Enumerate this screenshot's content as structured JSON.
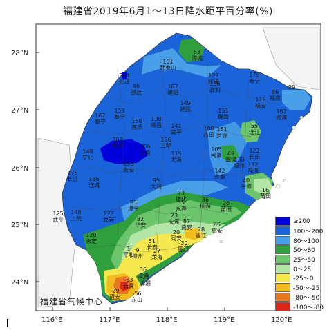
{
  "title": "福建省2019年6月1～13日降水距平百分率(%)",
  "watermark": "福建省气候中心",
  "axes": {
    "lat_ticks": [
      "28°N",
      "27°N",
      "26°N",
      "25°N",
      "24°N"
    ],
    "lon_ticks": [
      "116°E",
      "117°E",
      "118°E",
      "119°E",
      "120°E"
    ]
  },
  "legend": [
    {
      "label": "≥200",
      "color": "#0000dd"
    },
    {
      "label": "100～200",
      "color": "#1a63d8"
    },
    {
      "label": "80～100",
      "color": "#4aa0e8"
    },
    {
      "label": "50～80",
      "color": "#2f9e3c"
    },
    {
      "label": "25～50",
      "color": "#6cc46c"
    },
    {
      "label": "0～25",
      "color": "#b3e6a6"
    },
    {
      "label": "-25～0",
      "color": "#f5e84e"
    },
    {
      "label": "-50～-25",
      "color": "#f0bd1d"
    },
    {
      "label": "-80～-50",
      "color": "#e8761f"
    },
    {
      "label": "-100～-80",
      "color": "#dd2418"
    }
  ],
  "stations": [
    {
      "value": "53",
      "name": "浦城"
    },
    {
      "value": "101",
      "name": "武夷山"
    },
    {
      "value": "127",
      "name": "松溪"
    },
    {
      "value": "136",
      "name": "政和"
    },
    {
      "value": "179",
      "name": "寿宁"
    },
    {
      "value": "86",
      "name": "福鼎"
    },
    {
      "value": "99",
      "name": ""
    },
    {
      "value": "204",
      "name": "光泽"
    },
    {
      "value": "90",
      "name": "邵武"
    },
    {
      "value": "167",
      "name": "建阳"
    },
    {
      "value": "149",
      "name": "建瓯"
    },
    {
      "value": "151",
      "name": "屏南"
    },
    {
      "value": "119",
      "name": "福安"
    },
    {
      "value": "162",
      "name": "霞浦"
    },
    {
      "value": "162",
      "name": "泰宁"
    },
    {
      "value": "153",
      "name": "泰宁"
    },
    {
      "value": "156",
      "name": "将乐"
    },
    {
      "value": "138",
      "name": "顺昌"
    },
    {
      "value": "141",
      "name": "南平"
    },
    {
      "value": "108",
      "name": "古田"
    },
    {
      "value": "151",
      "name": "罗源"
    },
    {
      "value": "55",
      "name": "连江"
    },
    {
      "value": "148",
      "name": "宁化"
    },
    {
      "value": "207",
      "name": "明溪"
    },
    {
      "value": "206",
      "name": "沙县"
    },
    {
      "value": "136",
      "name": "三明"
    },
    {
      "value": "115",
      "name": "尤溪"
    },
    {
      "value": "105",
      "name": "闽清"
    },
    {
      "value": "49",
      "name": "闽侯"
    },
    {
      "value": "130",
      "name": "福州"
    },
    {
      "value": "122",
      "name": "长乐"
    },
    {
      "value": "112",
      "name": "福清"
    },
    {
      "value": "193",
      "name": "永安"
    },
    {
      "value": "175",
      "name": "长汀"
    },
    {
      "value": "116",
      "name": "连城"
    },
    {
      "value": "95",
      "name": "大田"
    },
    {
      "value": "142",
      "name": "永泰"
    },
    {
      "value": "40",
      "name": "平潭"
    },
    {
      "value": "16",
      "name": "莆田"
    },
    {
      "value": "73",
      "name": "德化"
    },
    {
      "value": "35",
      "name": "永春"
    },
    {
      "value": "36",
      "name": "仙游"
    },
    {
      "value": "26",
      "name": "莆田"
    },
    {
      "value": "125",
      "name": "武平"
    },
    {
      "value": "148",
      "name": "上杭"
    },
    {
      "value": "85",
      "name": "漳平"
    },
    {
      "value": "172",
      "name": "龙岩"
    },
    {
      "value": "82",
      "name": "华安"
    },
    {
      "value": "23",
      "name": "安溪"
    },
    {
      "value": "87",
      "name": "南安"
    },
    {
      "value": "28",
      "name": "晋江"
    },
    {
      "value": "65",
      "name": "惠安"
    },
    {
      "value": "120",
      "name": "永定"
    },
    {
      "value": "20",
      "name": "同安"
    },
    {
      "value": "51",
      "name": "长泰"
    },
    {
      "value": "1",
      "name": "平和"
    },
    {
      "value": "9",
      "name": "漳州"
    },
    {
      "value": "27",
      "name": "龙海"
    },
    {
      "value": "-30",
      "name": "厦门"
    },
    {
      "value": "36",
      "name": "漳浦"
    },
    {
      "value": "-53",
      "name": "云霄"
    },
    {
      "value": "-23",
      "name": "漳浦"
    },
    {
      "value": "-29",
      "name": "诏安"
    },
    {
      "value": "-56",
      "name": "东山"
    }
  ]
}
